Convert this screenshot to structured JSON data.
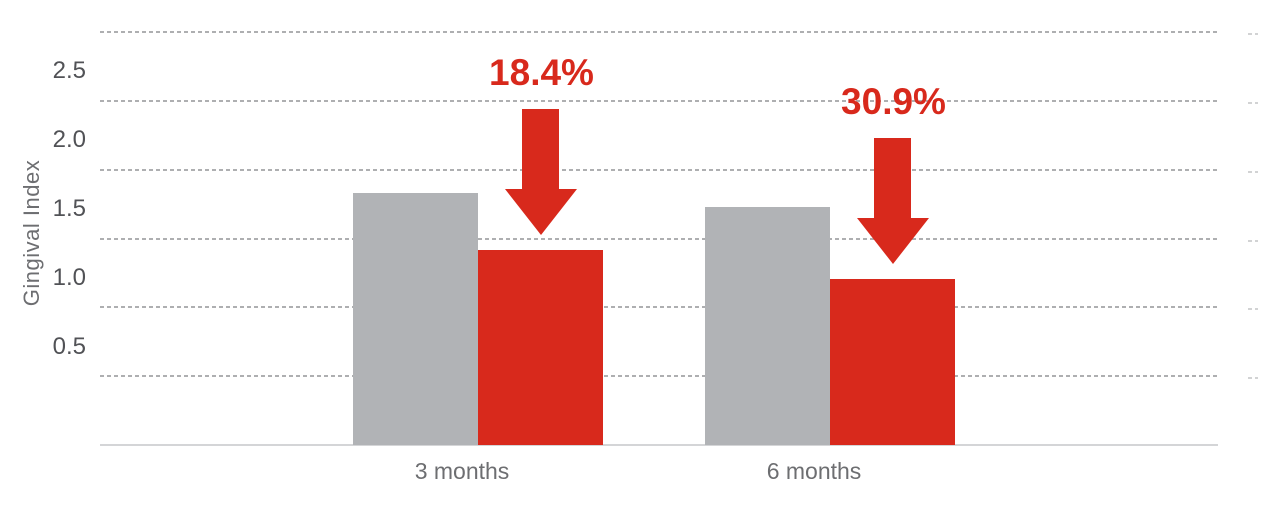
{
  "chart_data": {
    "type": "bar",
    "title": "",
    "ylabel": "Gingival Index",
    "xlabel": "",
    "categories": [
      "3 months",
      "6 months"
    ],
    "series": [
      {
        "name": "gray",
        "color": "#b1b3b6",
        "values": [
          1.83,
          1.73
        ]
      },
      {
        "name": "red",
        "color": "#d8291c",
        "values": [
          1.42,
          1.21
        ]
      }
    ],
    "annotations": [
      {
        "category": "3 months",
        "label": "18.4%",
        "type": "down-arrow"
      },
      {
        "category": "6 months",
        "label": "30.9%",
        "type": "down-arrow"
      }
    ],
    "y_ticks": [
      "2.5",
      "2.0",
      "1.5",
      "1.0",
      "0.5"
    ],
    "gridline_values": [
      0.5,
      1.0,
      1.5,
      2.0,
      2.5,
      3.0
    ],
    "ylim": [
      0,
      3.05
    ],
    "grid": "dotted-horizontal",
    "legend": "none"
  },
  "colors": {
    "bar_gray": "#b1b3b6",
    "bar_red": "#d8291c",
    "annotation_red": "#d8291c",
    "axis_text": "#6d6e71",
    "tick_text": "#515256",
    "gridline": "#aeafb1",
    "baseline": "#d4d5d7",
    "background": "#ffffff"
  }
}
